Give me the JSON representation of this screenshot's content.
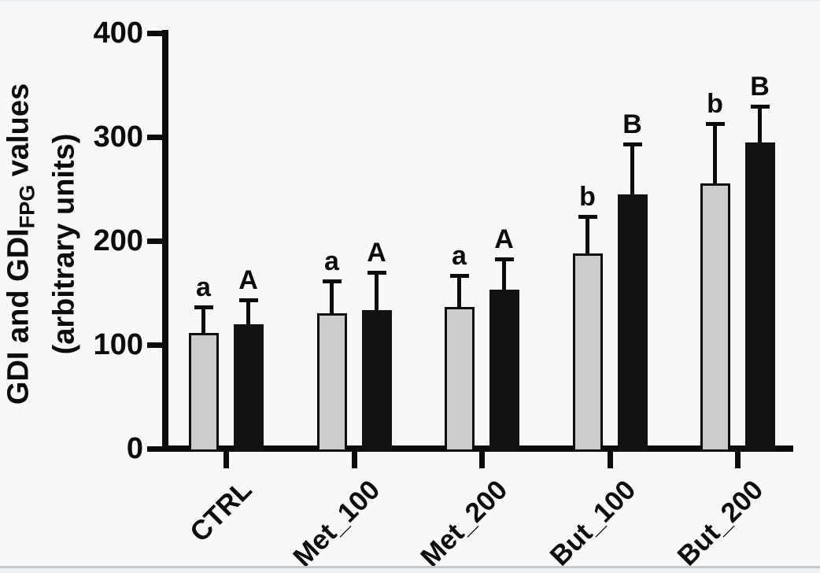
{
  "figure": {
    "ylabel": {
      "pre": "GDI and GDI",
      "sub": "FPG",
      "post": " values",
      "line2": "(arbitrary units)"
    }
  },
  "chart_data": {
    "type": "bar",
    "title": "",
    "xlabel": "",
    "ylabel": "GDI and GDI_FPG values (arbitrary units)",
    "categories": [
      "CTRL",
      "Met_100",
      "Met_200",
      "But_100",
      "But_200"
    ],
    "series": [
      {
        "name": "GDI",
        "fill": "#cccccd",
        "border": "#0e0e0e",
        "values": [
          111,
          130,
          136,
          188,
          255
        ],
        "errors_plus": [
          24,
          30,
          29,
          34,
          56
        ],
        "sig_labels": [
          "a",
          "a",
          "a",
          "b",
          "b"
        ]
      },
      {
        "name": "GDI_FPG",
        "fill": "#121212",
        "border": "#121212",
        "values": [
          120,
          133,
          153,
          245,
          295
        ],
        "errors_plus": [
          22,
          35,
          28,
          47,
          33
        ],
        "sig_labels": [
          "A",
          "A",
          "A",
          "B",
          "B"
        ]
      }
    ],
    "ylim": [
      0,
      400
    ],
    "yticks": [
      0,
      100,
      200,
      300,
      400
    ],
    "grid": false,
    "legend": "none",
    "error_bars": "upper-only",
    "x_tick_label_rotation_deg": 45
  }
}
